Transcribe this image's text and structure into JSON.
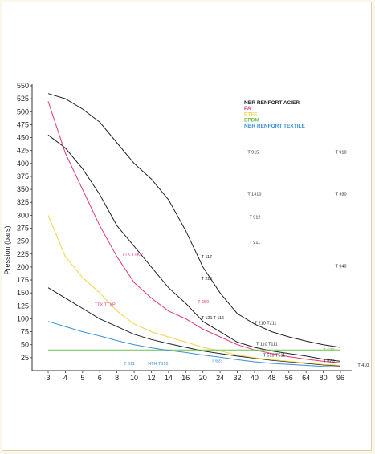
{
  "chart_data": {
    "type": "line",
    "xlabel": "",
    "ylabel": "Pression (bars)",
    "ylim": [
      0,
      550
    ],
    "y_ticks": [
      25,
      50,
      75,
      100,
      125,
      150,
      175,
      200,
      225,
      250,
      275,
      300,
      325,
      350,
      375,
      400,
      425,
      450,
      475,
      500,
      525,
      550
    ],
    "x_ticks": [
      "3",
      "4",
      "5",
      "6",
      "8",
      "10",
      "12",
      "14",
      "16",
      "20",
      "24",
      "32",
      "40",
      "48",
      "56",
      "64",
      "80",
      "96"
    ],
    "grid": false,
    "legend_position": "top-right",
    "legend": [
      {
        "name": "NBR RENFORT ACIER",
        "color": "#222222"
      },
      {
        "name": "PA",
        "color": "#e0387a"
      },
      {
        "name": "PTFE",
        "color": "#f5d24a"
      },
      {
        "name": "EPDM",
        "color": "#6cc24a"
      },
      {
        "name": "NBR RENFORT TEXTILE",
        "color": "#3b8fd9"
      }
    ],
    "series": [
      {
        "color": "#222222",
        "x": [
          3,
          4,
          5,
          6,
          8,
          10,
          12,
          14,
          16,
          20,
          24,
          32,
          40,
          48,
          56,
          64,
          80,
          96
        ],
        "y": [
          535,
          525,
          505,
          480,
          440,
          400,
          370,
          330,
          270,
          200,
          150,
          110,
          90,
          75,
          65,
          57,
          50,
          45
        ]
      },
      {
        "color": "#222222",
        "x": [
          3,
          4,
          5,
          6,
          8,
          10,
          12,
          14,
          16,
          20,
          24,
          32,
          40,
          48,
          56,
          64,
          80,
          96
        ],
        "y": [
          455,
          430,
          390,
          340,
          280,
          240,
          200,
          160,
          130,
          95,
          75,
          55,
          45,
          38,
          33,
          28,
          22,
          18
        ]
      },
      {
        "color": "#222222",
        "x": [
          3,
          4,
          5,
          6,
          8,
          10,
          12,
          14,
          16,
          20,
          24,
          32,
          40,
          48,
          56,
          64,
          80,
          96
        ],
        "y": [
          160,
          140,
          120,
          100,
          85,
          70,
          60,
          52,
          45,
          38,
          33,
          28,
          24,
          20,
          17,
          14,
          11,
          9
        ]
      },
      {
        "color": "#e0387a",
        "x": [
          3,
          4,
          5,
          6,
          8,
          10,
          12,
          14,
          16,
          20,
          24,
          32,
          40,
          48,
          56,
          64,
          80,
          96
        ],
        "y": [
          520,
          420,
          350,
          280,
          220,
          170,
          140,
          115,
          100,
          80,
          65,
          50,
          40,
          33,
          27,
          22,
          18,
          15
        ]
      },
      {
        "color": "#f5d24a",
        "x": [
          3,
          4,
          5,
          6,
          8,
          10,
          12,
          14,
          16,
          20,
          24,
          32,
          40,
          48,
          56,
          64,
          80,
          96
        ],
        "y": [
          300,
          220,
          180,
          150,
          115,
          90,
          75,
          65,
          55,
          45,
          38,
          30,
          25,
          21,
          18,
          15,
          12,
          10
        ]
      },
      {
        "color": "#6cc24a",
        "x": [
          3,
          4,
          5,
          6,
          8,
          10,
          12,
          14,
          16,
          20,
          24,
          32,
          40,
          48,
          56,
          64,
          80,
          96
        ],
        "y": [
          40,
          40,
          40,
          40,
          40,
          40,
          40,
          40,
          40,
          40,
          40,
          40,
          40,
          40,
          40,
          40,
          40,
          40
        ]
      },
      {
        "color": "#3b8fd9",
        "x": [
          3,
          4,
          5,
          6,
          8,
          10,
          12,
          14,
          16,
          20,
          24,
          32,
          40,
          48,
          56,
          64,
          80,
          96
        ],
        "y": [
          95,
          85,
          75,
          67,
          58,
          50,
          44,
          39,
          35,
          30,
          26,
          21,
          17,
          14,
          12,
          10,
          8,
          7
        ]
      }
    ],
    "annotations": [
      {
        "text": "T 915",
        "color": "#222222",
        "x_idx": 11.6,
        "y": 422
      },
      {
        "text": "T 910",
        "color": "#222222",
        "x_idx": 16.7,
        "y": 422
      },
      {
        "text": "T 1310",
        "color": "#222222",
        "x_idx": 11.6,
        "y": 342
      },
      {
        "text": "T 930",
        "color": "#222222",
        "x_idx": 16.7,
        "y": 342
      },
      {
        "text": "T 912",
        "color": "#222222",
        "x_idx": 11.7,
        "y": 297
      },
      {
        "text": "T 911",
        "color": "#222222",
        "x_idx": 11.7,
        "y": 248
      },
      {
        "text": "T 940",
        "color": "#222222",
        "x_idx": 16.7,
        "y": 202
      },
      {
        "text": "TTK TTKP",
        "color": "#e0387a",
        "x_idx": 4.3,
        "y": 225
      },
      {
        "text": "T 117",
        "color": "#222222",
        "x_idx": 8.9,
        "y": 220
      },
      {
        "text": "T 221",
        "color": "#222222",
        "x_idx": 8.9,
        "y": 178
      },
      {
        "text": "TTX TTXP",
        "color": "#e0387a",
        "x_idx": 2.7,
        "y": 128
      },
      {
        "text": "T 650",
        "color": "#e0387a",
        "x_idx": 8.7,
        "y": 133
      },
      {
        "text": "T 121",
        "color": "#222222",
        "x_idx": 8.9,
        "y": 102
      },
      {
        "text": "T 116",
        "color": "#222222",
        "x_idx": 9.6,
        "y": 102
      },
      {
        "text": "T 210 T211",
        "color": "#222222",
        "x_idx": 12.0,
        "y": 92
      },
      {
        "text": "T 110 T111",
        "color": "#222222",
        "x_idx": 12.1,
        "y": 52
      },
      {
        "text": "T 532",
        "color": "#6cc24a",
        "x_idx": 16.0,
        "y": 40
      },
      {
        "text": "T 510 T511",
        "color": "#222222",
        "x_idx": 12.5,
        "y": 30
      },
      {
        "text": "T 623",
        "color": "#3b8fd9",
        "x_idx": 9.5,
        "y": 19
      },
      {
        "text": "T 623",
        "color": "#222222",
        "x_idx": 16.0,
        "y": 19
      },
      {
        "text": "T 611",
        "color": "#3b8fd9",
        "x_idx": 4.4,
        "y": 14
      },
      {
        "text": "HTH T610",
        "color": "#3b8fd9",
        "x_idx": 5.8,
        "y": 14
      },
      {
        "text": "T 410",
        "color": "#222222",
        "x_idx": 18.0,
        "y": 11
      }
    ]
  }
}
